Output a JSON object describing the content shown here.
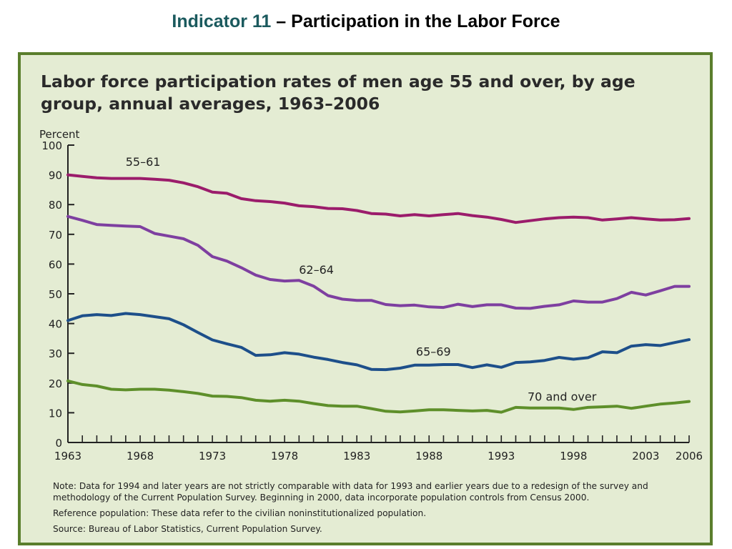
{
  "slide": {
    "title_accent": "Indicator 11",
    "title_rest": " – Participation in the Labor Force"
  },
  "notes": {
    "note": "Note:  Data for 1994 and later years are not strictly comparable with data for 1993 and earlier years due to a redesign of the survey and methodology of the Current Population Survey.  Beginning in 2000, data incorporate population controls from Census 2000.",
    "reference": "Reference population:  These data refer to the civilian noninstitutionalized population.",
    "source": "Source:  Bureau of Labor Statistics, Current Population Survey."
  },
  "colors": {
    "panel_bg": "#e4ecd3",
    "panel_border": "#5a7e2c",
    "title_accent": "#1b5a5e"
  },
  "chart_data": {
    "type": "line",
    "title": "Labor force participation rates of men age 55 and over, by age group, annual averages, 1963–2006",
    "ylabel": "Percent",
    "xlabel": "",
    "ylim": [
      0,
      100
    ],
    "xlim": [
      1963,
      2006
    ],
    "yticks": [
      0,
      10,
      20,
      30,
      40,
      50,
      60,
      70,
      80,
      90,
      100
    ],
    "xtick_labels": [
      "1963",
      "1968",
      "1973",
      "1978",
      "1983",
      "1988",
      "1993",
      "1998",
      "2003",
      "2006"
    ],
    "grid": false,
    "legend": "inline labels",
    "x": [
      1963,
      1964,
      1965,
      1966,
      1967,
      1968,
      1969,
      1970,
      1971,
      1972,
      1973,
      1974,
      1975,
      1976,
      1977,
      1978,
      1979,
      1980,
      1981,
      1982,
      1983,
      1984,
      1985,
      1986,
      1987,
      1988,
      1989,
      1990,
      1991,
      1992,
      1993,
      1994,
      1995,
      1996,
      1997,
      1998,
      1999,
      2000,
      2001,
      2002,
      2003,
      2004,
      2005,
      2006
    ],
    "series": [
      {
        "name": "55–61",
        "color": "#9b1c6b",
        "values": [
          90.0,
          89.5,
          89.0,
          88.8,
          88.8,
          88.8,
          88.5,
          88.2,
          87.3,
          86.0,
          84.2,
          83.8,
          82.0,
          81.3,
          81.0,
          80.5,
          79.6,
          79.3,
          78.7,
          78.6,
          78.0,
          77.0,
          76.8,
          76.2,
          76.6,
          76.2,
          76.6,
          77.0,
          76.3,
          75.8,
          75.0,
          74.0,
          74.6,
          75.2,
          75.6,
          75.8,
          75.6,
          74.8,
          75.2,
          75.6,
          75.2,
          74.8,
          74.9,
          75.3
        ]
      },
      {
        "name": "62–64",
        "color": "#7e3fa0",
        "values": [
          76.0,
          74.7,
          73.3,
          73.0,
          72.8,
          72.6,
          70.3,
          69.4,
          68.5,
          66.3,
          62.5,
          61.0,
          58.8,
          56.3,
          54.8,
          54.3,
          54.5,
          52.6,
          49.4,
          48.2,
          47.8,
          47.8,
          46.4,
          46.0,
          46.2,
          45.6,
          45.4,
          46.5,
          45.7,
          46.3,
          46.3,
          45.2,
          45.1,
          45.8,
          46.3,
          47.6,
          47.2,
          47.2,
          48.4,
          50.5,
          49.6,
          51.0,
          52.5,
          52.5
        ]
      },
      {
        "name": "65–69",
        "color": "#1d4f8a",
        "values": [
          41.0,
          42.6,
          43.0,
          42.7,
          43.4,
          43.0,
          42.3,
          41.6,
          39.6,
          37.0,
          34.5,
          33.2,
          32.0,
          29.3,
          29.5,
          30.2,
          29.7,
          28.7,
          27.9,
          26.9,
          26.1,
          24.6,
          24.5,
          25.0,
          26.0,
          26.0,
          26.2,
          26.2,
          25.2,
          26.1,
          25.3,
          26.9,
          27.1,
          27.6,
          28.6,
          28.0,
          28.5,
          30.5,
          30.2,
          32.4,
          32.9,
          32.6,
          33.6,
          34.6
        ]
      },
      {
        "name": "70 and over",
        "color": "#5e8f2a",
        "values": [
          20.7,
          19.5,
          19.0,
          17.9,
          17.7,
          17.9,
          17.9,
          17.6,
          17.1,
          16.5,
          15.6,
          15.5,
          15.1,
          14.2,
          13.9,
          14.2,
          13.9,
          13.1,
          12.4,
          12.2,
          12.2,
          11.4,
          10.5,
          10.3,
          10.6,
          11.0,
          11.0,
          10.8,
          10.6,
          10.8,
          10.2,
          11.8,
          11.6,
          11.6,
          11.6,
          11.1,
          11.8,
          12.0,
          12.2,
          11.5,
          12.2,
          12.9,
          13.3,
          13.8
        ]
      }
    ]
  }
}
